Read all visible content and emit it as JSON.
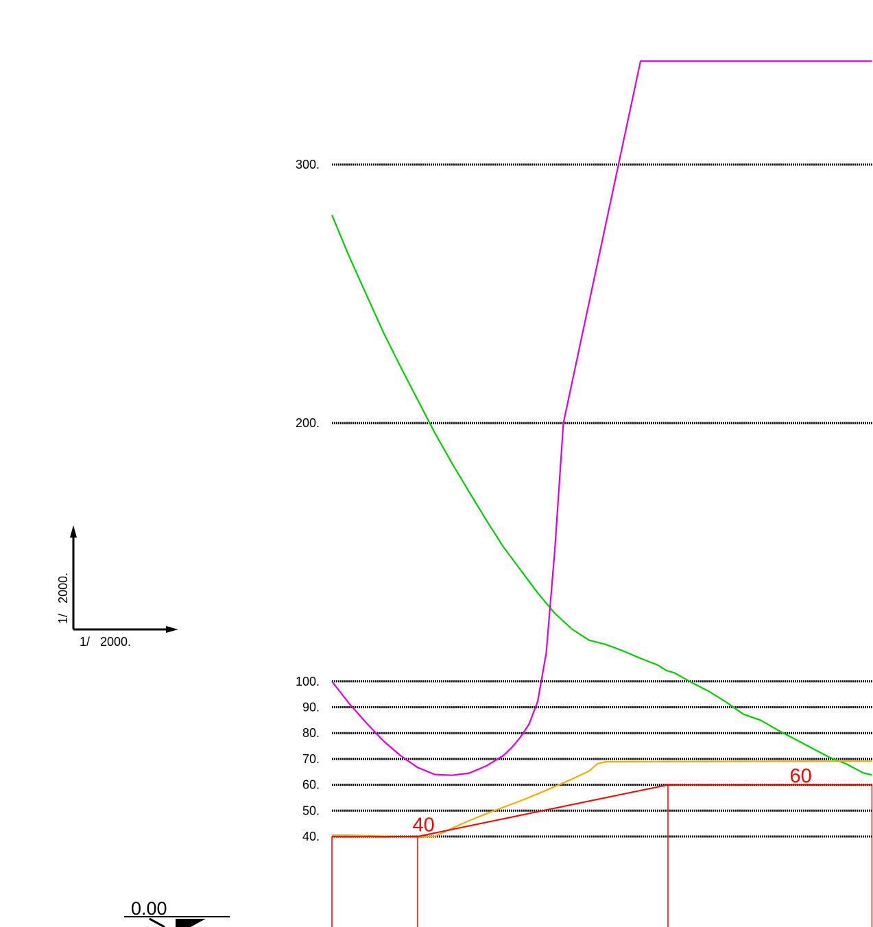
{
  "chart_data": {
    "type": "line",
    "title": "",
    "xlabel": "",
    "ylabel": "",
    "y_segments": [
      {
        "ylim": [
          40,
          100
        ],
        "ticks": [
          40,
          50,
          60,
          70,
          80,
          90,
          100
        ],
        "tick_labels": [
          "40.",
          "50.",
          "60.",
          "70.",
          "80.",
          "90.",
          "100."
        ]
      },
      {
        "ylim": [
          100,
          300
        ],
        "ticks": [
          200,
          300
        ],
        "tick_labels": [
          "200.",
          "300."
        ]
      }
    ],
    "grid": "horizontal dotted lines at tick values",
    "x_units": "m",
    "series": [
      {
        "color": "#00cc00",
        "x": [
          0,
          10,
          20,
          30,
          40,
          50,
          60,
          70,
          80,
          90,
          100,
          110,
          120,
          130,
          140,
          150,
          160,
          170,
          180,
          190,
          195,
          200,
          210,
          220,
          230,
          240,
          250,
          260,
          270,
          280,
          290,
          300,
          310,
          315
        ],
        "y": [
          280.5,
          264.5,
          249.8,
          235.1,
          221.8,
          209.0,
          196.2,
          184.5,
          173.4,
          162.5,
          152.1,
          143.2,
          134.3,
          126.4,
          120.3,
          116.0,
          114.3,
          111.8,
          109.0,
          106.4,
          104.3,
          103.3,
          99.5,
          96.1,
          92.0,
          87.3,
          85.0,
          81.2,
          77.7,
          74.2,
          70.7,
          68.1,
          64.6,
          63.8
        ]
      },
      {
        "color": "#dd00dd",
        "x": [
          0,
          10,
          20,
          30,
          40,
          50,
          60,
          70,
          80,
          90,
          100,
          105,
          110,
          115,
          120,
          125,
          130,
          135,
          180,
          315
        ],
        "y": [
          100,
          91.5,
          84.0,
          77.0,
          71.3,
          66.7,
          64.0,
          63.7,
          64.5,
          67.3,
          71.3,
          74.5,
          78.5,
          83.5,
          92.2,
          111.1,
          150.8,
          200,
          340,
          340
        ]
      },
      {
        "color": "#f0b000",
        "x": [
          0,
          10,
          20,
          30,
          40,
          50,
          60,
          70,
          80,
          90,
          100,
          110,
          120,
          130,
          140,
          150,
          155,
          160,
          200,
          315
        ],
        "y": [
          40.5,
          40.5,
          40.3,
          40.1,
          40.0,
          40.0,
          40.0,
          43.2,
          46.1,
          48.8,
          51.3,
          53.8,
          56.5,
          59.3,
          62.2,
          65.3,
          68.2,
          68.9,
          69.0,
          69.2
        ]
      },
      {
        "color": "#ff0000",
        "x": [
          0,
          50,
          196,
          315
        ],
        "y": [
          40,
          40,
          60,
          60
        ]
      }
    ],
    "speed_labels": [
      {
        "text": "40",
        "x": 47,
        "y": 42
      },
      {
        "text": "60",
        "x": 267,
        "y": 61
      }
    ],
    "section_breaks_x": [
      0,
      50,
      196,
      315
    ]
  },
  "scale": {
    "vertical": "1/   2000.",
    "horizontal": "1/   2000."
  },
  "datum": {
    "label": "0.00"
  },
  "colors": {
    "speed_limit": "#ff0000",
    "grid": "#000000"
  }
}
